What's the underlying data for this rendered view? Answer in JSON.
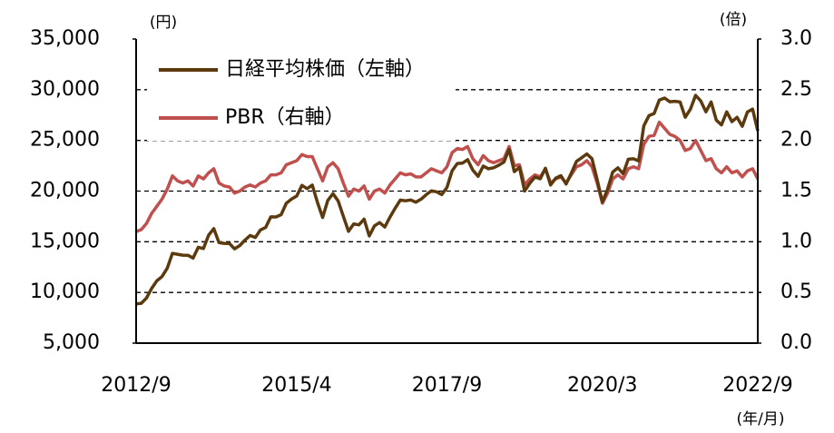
{
  "chart_data": {
    "type": "line",
    "unit_left": "(円)",
    "unit_right": "(倍)",
    "x_unit": "(年/月)",
    "categories": [
      "2012/9",
      null,
      null,
      null,
      null,
      null,
      null,
      null,
      null,
      null,
      null,
      null,
      null,
      null,
      null,
      null,
      null,
      null,
      null,
      null,
      null,
      null,
      null,
      null,
      null,
      null,
      null,
      null,
      null,
      null,
      null,
      "2015/4",
      null,
      null,
      null,
      null,
      null,
      null,
      null,
      null,
      null,
      null,
      null,
      null,
      null,
      null,
      null,
      null,
      null,
      null,
      null,
      null,
      null,
      null,
      null,
      null,
      null,
      null,
      null,
      null,
      "2017/9",
      null,
      null,
      null,
      null,
      null,
      null,
      null,
      null,
      null,
      null,
      null,
      null,
      null,
      null,
      null,
      null,
      null,
      null,
      null,
      null,
      null,
      null,
      null,
      null,
      null,
      null,
      null,
      null,
      null,
      "2020/3",
      null,
      null,
      null,
      null,
      null,
      null,
      null,
      null,
      null,
      null,
      null,
      null,
      null,
      null,
      null,
      null,
      null,
      null,
      null,
      null,
      null,
      null,
      null,
      null,
      null,
      null,
      null,
      null,
      null,
      "2022/9"
    ],
    "series": [
      {
        "name": "日経平均株価（左軸）",
        "color": "#5c3a0e",
        "values": [
          8870,
          8930,
          9450,
          10400,
          11140,
          11560,
          12400,
          13860,
          13770,
          13680,
          13670,
          13390,
          14460,
          14330,
          15660,
          16290,
          14910,
          14840,
          14830,
          14300,
          14630,
          15160,
          15620,
          15420,
          16170,
          16410,
          17460,
          17450,
          17670,
          18800,
          19210,
          19520,
          20560,
          20240,
          20590,
          18890,
          17390,
          19080,
          19750,
          19030,
          17520,
          16030,
          16760,
          16670,
          17230,
          15580,
          16570,
          16890,
          16450,
          17430,
          18310,
          19110,
          19040,
          19120,
          18910,
          19200,
          19650,
          20030,
          19930,
          19650,
          20360,
          22010,
          22720,
          22760,
          23100,
          22070,
          21450,
          22470,
          22200,
          22300,
          22550,
          22870,
          24120,
          21920,
          22350,
          20010,
          20770,
          21390,
          21210,
          22260,
          20600,
          21280,
          21520,
          20700,
          21760,
          22930,
          23290,
          23660,
          23200,
          21140,
          18920,
          20190,
          21880,
          22290,
          21710,
          23140,
          23190,
          22980,
          26430,
          27440,
          27660,
          28970,
          29180,
          28810,
          28860,
          28790,
          27280,
          28090,
          29450,
          28890,
          27820,
          28790,
          27000,
          26530,
          27820,
          26850,
          27280,
          26390,
          27800,
          28090,
          25940
        ]
      },
      {
        "name": "PBR（右軸）",
        "color": "#c0504d",
        "axis": "y2",
        "values": [
          1.1,
          1.12,
          1.18,
          1.28,
          1.35,
          1.42,
          1.52,
          1.65,
          1.6,
          1.58,
          1.6,
          1.55,
          1.65,
          1.62,
          1.68,
          1.72,
          1.58,
          1.55,
          1.54,
          1.48,
          1.5,
          1.54,
          1.56,
          1.54,
          1.58,
          1.6,
          1.66,
          1.66,
          1.68,
          1.76,
          1.78,
          1.8,
          1.86,
          1.84,
          1.84,
          1.72,
          1.6,
          1.74,
          1.78,
          1.72,
          1.58,
          1.45,
          1.52,
          1.5,
          1.55,
          1.42,
          1.5,
          1.52,
          1.48,
          1.56,
          1.62,
          1.68,
          1.66,
          1.67,
          1.64,
          1.64,
          1.68,
          1.72,
          1.7,
          1.68,
          1.74,
          1.88,
          1.92,
          1.91,
          1.94,
          1.82,
          1.76,
          1.85,
          1.8,
          1.78,
          1.8,
          1.82,
          1.94,
          1.75,
          1.76,
          1.56,
          1.62,
          1.66,
          1.64,
          1.72,
          1.58,
          1.62,
          1.64,
          1.58,
          1.66,
          1.74,
          1.76,
          1.8,
          1.74,
          1.58,
          1.38,
          1.48,
          1.62,
          1.66,
          1.62,
          1.72,
          1.74,
          1.72,
          1.96,
          2.04,
          2.05,
          2.18,
          2.12,
          2.06,
          2.04,
          2.0,
          1.9,
          1.92,
          2.0,
          1.9,
          1.8,
          1.82,
          1.72,
          1.68,
          1.74,
          1.68,
          1.7,
          1.64,
          1.7,
          1.72,
          1.62
        ]
      }
    ],
    "ylim": [
      5000,
      35000
    ],
    "yticks": [
      {
        "value": 5000,
        "label": "5,000"
      },
      {
        "value": 10000,
        "label": "10,000"
      },
      {
        "value": 15000,
        "label": "15,000"
      },
      {
        "value": 20000,
        "label": "20,000"
      },
      {
        "value": 25000,
        "label": "25,000"
      },
      {
        "value": 30000,
        "label": "30,000"
      },
      {
        "value": 35000,
        "label": "35,000"
      }
    ],
    "y2lim": [
      0,
      3
    ],
    "y2ticks": [
      {
        "value": 0,
        "label": "0.0"
      },
      0.5,
      {
        "value": 1,
        "label": "1.0"
      },
      1.5,
      {
        "value": 2,
        "label": "2.0"
      },
      2.5,
      {
        "value": 3,
        "label": "3.0"
      }
    ],
    "grid": true,
    "legend": "upper left"
  }
}
